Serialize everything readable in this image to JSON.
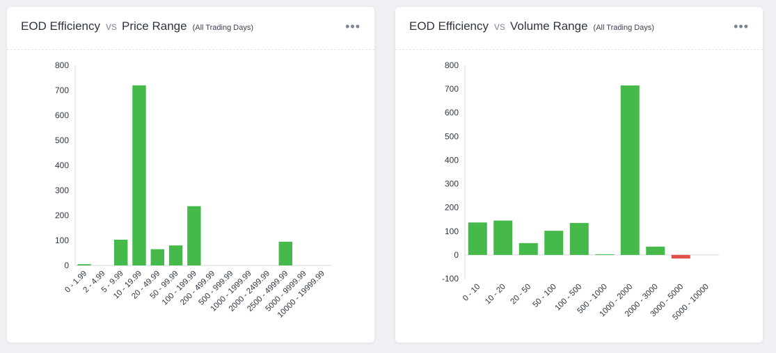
{
  "charts": [
    {
      "title_main": "EOD Efficiency",
      "vs": "vs",
      "title_metric": "Price Range",
      "subtitle": "(All Trading Days)",
      "menu_icon": "more-horizontal-icon",
      "chart_data": {
        "type": "bar",
        "categories": [
          "0 - 1.99",
          "2 - 4.99",
          "5 - 9.99",
          "10 - 19.99",
          "20 - 49.99",
          "50 - 99.99",
          "100 - 199.99",
          "200 - 499.99",
          "500 - 999.99",
          "1000 - 1999.99",
          "2000 - 2499.99",
          "2500 - 4999.99",
          "5000 - 9999.99",
          "10000 - 19999.99"
        ],
        "values": [
          5,
          0,
          103,
          720,
          65,
          80,
          237,
          0,
          0,
          0,
          0,
          95,
          0,
          0
        ],
        "ylim": [
          0,
          800
        ],
        "yticks": [
          0,
          100,
          200,
          300,
          400,
          500,
          600,
          700,
          800
        ],
        "grid": false,
        "legend": "none",
        "positive_color": "#45ba4b",
        "negative_color": "#e2504c"
      }
    },
    {
      "title_main": "EOD Efficiency",
      "vs": "vs",
      "title_metric": "Volume Range",
      "subtitle": "(All Trading Days)",
      "menu_icon": "more-horizontal-icon",
      "chart_data": {
        "type": "bar",
        "categories": [
          "0 - 10",
          "10 - 20",
          "20 - 50",
          "50 - 100",
          "100 - 500",
          "500 - 1000",
          "1000 - 2000",
          "2000 - 3000",
          "3000 - 5000",
          "5000 - 10000"
        ],
        "values": [
          137,
          145,
          50,
          102,
          135,
          3,
          715,
          35,
          -15,
          0
        ],
        "ylim": [
          -100,
          800
        ],
        "yticks": [
          -100,
          0,
          100,
          200,
          300,
          400,
          500,
          600,
          700,
          800
        ],
        "grid": false,
        "legend": "none",
        "positive_color": "#45ba4b",
        "negative_color": "#e2504c"
      }
    }
  ]
}
